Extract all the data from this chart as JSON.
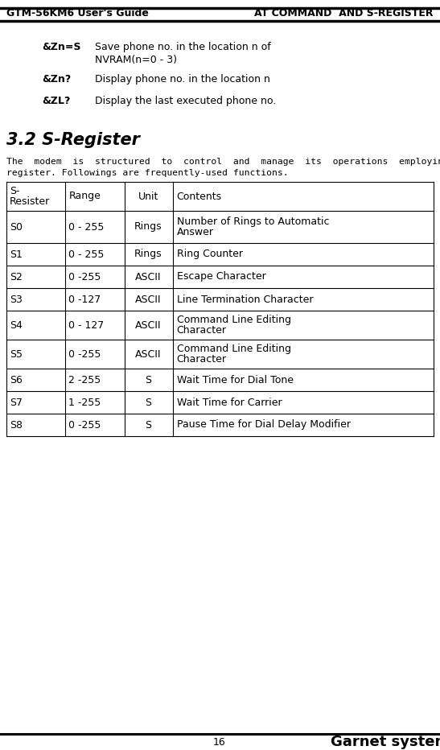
{
  "header_left": "GTM-56KM6 User's Guide",
  "header_right": "AT COMMAND  AND S-REGISTER",
  "cmd1_key": "&Zn=S",
  "cmd1_line1": "Save phone no. in the location n of",
  "cmd1_line2": "NVRAM(n=0 - 3)",
  "cmd2_key": "&Zn?",
  "cmd2_desc": "Display phone no. in the location n",
  "cmd3_key": "&ZL?",
  "cmd3_desc": "Display the last executed phone no.",
  "section_title": "3.2 S-Register",
  "body_line1": "The  modem  is  structured  to  control  and  manage  its  operations  employing  S-",
  "body_line2": "register. Followings are frequently-used functions.",
  "table_headers": [
    "S-\nResister",
    "Range",
    "Unit",
    "Contents"
  ],
  "table_rows": [
    [
      "S0",
      "0 - 255",
      "Rings",
      "Number of Rings to Automatic\nAnswer"
    ],
    [
      "S1",
      "0 - 255",
      "Rings",
      "Ring Counter"
    ],
    [
      "S2",
      "0 -255",
      "ASCII",
      "Escape Character"
    ],
    [
      "S3",
      "0 -127",
      "ASCII",
      "Line Termination Character"
    ],
    [
      "S4",
      "0 - 127",
      "ASCII",
      "Command Line Editing\nCharacter"
    ],
    [
      "S5",
      "0 -255",
      "ASCII",
      "Command Line Editing\nCharacter"
    ],
    [
      "S6",
      "2 -255",
      "S",
      "Wait Time for Dial Tone"
    ],
    [
      "S7",
      "1 -255",
      "S",
      "Wait Time for Carrier"
    ],
    [
      "S8",
      "0 -255",
      "S",
      "Pause Time for Dial Delay Modifier"
    ]
  ],
  "footer_page": "16",
  "footer_company": "Garnet systems"
}
